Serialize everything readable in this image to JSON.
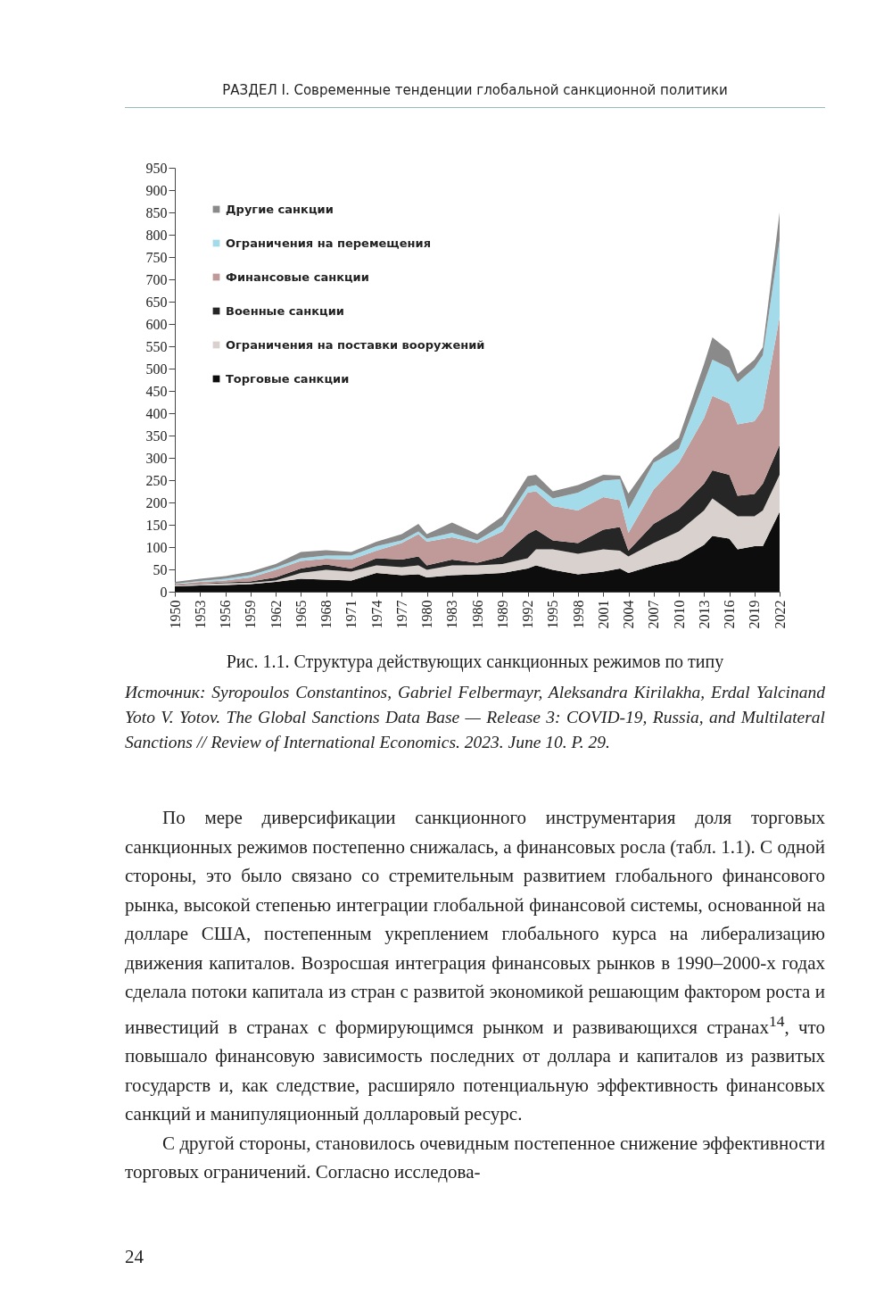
{
  "chart_data": {
    "type": "area",
    "stacked": true,
    "annotations": [
      "РАЗДЕЛ I. Современные тенденции глобальной санкционной политики",
      "Рис. 1.1. Структура действующих санкционных режимов по типу",
      "Источник: Syropoulos Constantinos, Gabriel Felbermayr, Aleksandra Kirilakha, Erdal Yalcinand Yoto V. Yotov. The Global Sanctions Data Base — Release 3: COVID-19, Russia, and Multilateral Sanctions // Review of International Economics. 2023. June 10. P. 29.",
      "По мере диверсификации санкционного инструментария доля торговых санкционных режимов постепенно снижалась, а финансовых росла (табл. 1.1). С одной стороны, это было связано со стремительным развитием глобального финансового рынка, высокой степенью интеграции глобальной финансовой системы, основанной на долларе США, постепенным укреплением глобального курса на либерализацию движения капиталов. Возросшая интеграция финансовых рынков в 1990–2000-х годах сделала потоки капитала из стран с развитой экономикой решающим фактором роста и инвестиций в странах с формирующимся рынком и развивающихся странах$^{14}$, что повышало финансовую зависимость последних от доллара и капиталов из развитых государств и, как следствие, расширяло потенциальную эффективность финансовых санкций и манипуляционный долларовый ресурс.",
      "С другой стороны, становилось очевидным постепенное снижение эффективности торговых ограничений. Согласно исследова-",
      "24"
    ],
    "x": [
      1950,
      1953,
      1956,
      1959,
      1962,
      1965,
      1968,
      1971,
      1974,
      1977,
      1979,
      1980,
      1983,
      1986,
      1989,
      1992,
      1993,
      1995,
      1998,
      2001,
      2003,
      2004,
      2007,
      2010,
      2013,
      2014,
      2016,
      2017,
      2019,
      2020,
      2022
    ],
    "series": [
      {
        "name": "Торговые санкции",
        "color": "#0d0d0d",
        "values": [
          12,
          14,
          15,
          17,
          22,
          29,
          27,
          25,
          42,
          37,
          39,
          32,
          37,
          39,
          42,
          52,
          59,
          49,
          39,
          45,
          52,
          42,
          59,
          72,
          105,
          125,
          119,
          95,
          102,
          102,
          179
        ]
      },
      {
        "name": "Ограничения на поставки вооружений",
        "color": "#d9d1cd",
        "values": [
          2,
          3,
          4,
          3,
          3,
          13,
          22,
          20,
          17,
          18,
          20,
          17,
          22,
          20,
          20,
          23,
          36,
          46,
          46,
          50,
          40,
          37,
          50,
          63,
          77,
          84,
          63,
          74,
          67,
          80,
          83
        ]
      },
      {
        "name": "Военные санкции",
        "color": "#262626",
        "values": [
          1,
          1,
          2,
          3,
          7,
          10,
          12,
          7,
          16,
          17,
          20,
          10,
          13,
          6,
          17,
          54,
          44,
          20,
          24,
          44,
          53,
          13,
          43,
          50,
          60,
          63,
          80,
          46,
          50,
          60,
          67
        ]
      },
      {
        "name": "Финансовые санкции",
        "color": "#c09a98",
        "values": [
          2,
          4,
          4,
          9,
          17,
          17,
          13,
          20,
          17,
          37,
          50,
          53,
          50,
          44,
          56,
          93,
          86,
          77,
          73,
          73,
          60,
          40,
          77,
          104,
          147,
          167,
          160,
          160,
          163,
          167,
          286
        ]
      },
      {
        "name": "Ограничения на перемещения",
        "color": "#a3dbea",
        "values": [
          1,
          2,
          4,
          5,
          5,
          6,
          7,
          9,
          10,
          6,
          6,
          7,
          10,
          6,
          14,
          13,
          14,
          17,
          40,
          37,
          47,
          53,
          60,
          31,
          80,
          81,
          80,
          94,
          120,
          121,
          173
        ]
      },
      {
        "name": "Другие санкции",
        "color": "#8a8a8a",
        "values": [
          4,
          5,
          6,
          8,
          8,
          14,
          12,
          8,
          10,
          14,
          17,
          10,
          23,
          14,
          20,
          24,
          23,
          16,
          17,
          13,
          8,
          35,
          10,
          25,
          41,
          50,
          38,
          19,
          18,
          18,
          62
        ]
      }
    ],
    "xlim": [
      1950,
      2022
    ],
    "xticks": [
      1950,
      1953,
      1956,
      1959,
      1962,
      1965,
      1968,
      1971,
      1974,
      1977,
      1980,
      1983,
      1986,
      1989,
      1992,
      1995,
      1998,
      2001,
      2004,
      2007,
      2010,
      2013,
      2016,
      2019,
      2022
    ],
    "ylim": [
      0,
      950
    ],
    "yticks": [
      0,
      50,
      100,
      150,
      200,
      250,
      300,
      350,
      400,
      450,
      500,
      550,
      600,
      650,
      700,
      750,
      800,
      850,
      900,
      950
    ],
    "legend": "top left"
  }
}
